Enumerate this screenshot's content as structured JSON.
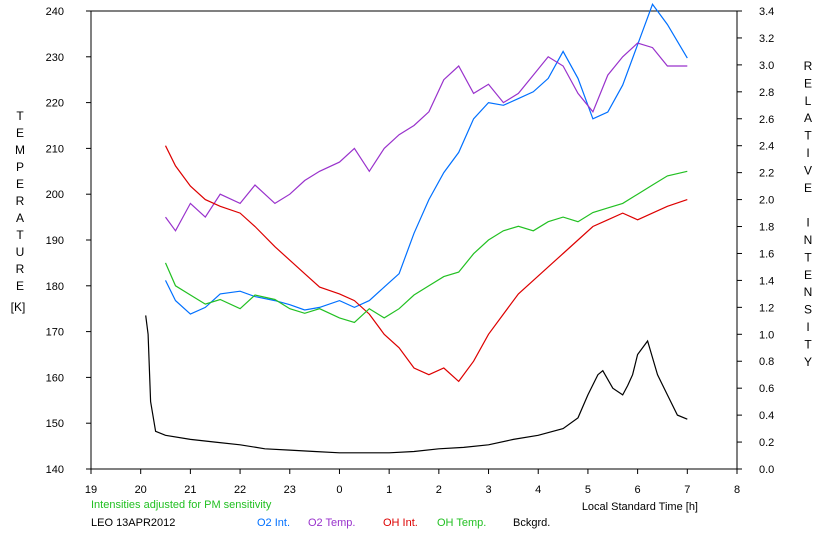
{
  "chart_data": {
    "type": "line",
    "station": "LEO 13APR2012",
    "note": "Intensities adjusted for PM sensitivity",
    "xlabel": "Local Standard Time [h]",
    "ylabel_left": "TEMPERATURE",
    "ylabel_left_unit": "[K]",
    "ylabel_right": "RELATIVE INTENSITY",
    "xlim": [
      19,
      32
    ],
    "x_ticks": [
      "19",
      "20",
      "21",
      "22",
      "23",
      "0",
      "1",
      "2",
      "3",
      "4",
      "5",
      "6",
      "7",
      "8"
    ],
    "ylim_left": [
      140,
      240
    ],
    "y_ticks_left": [
      "140",
      "150",
      "160",
      "170",
      "180",
      "190",
      "200",
      "210",
      "220",
      "230",
      "240"
    ],
    "ylim_right": [
      0.0,
      3.4
    ],
    "y_ticks_right": [
      "0.0",
      "0.2",
      "0.4",
      "0.6",
      "0.8",
      "1.0",
      "1.2",
      "1.4",
      "1.6",
      "1.8",
      "2.0",
      "2.2",
      "2.4",
      "2.6",
      "2.8",
      "3.0",
      "3.2",
      "3.4"
    ],
    "grid": false,
    "legend_placement": "bottom",
    "series": [
      {
        "name": "O2 Int.",
        "axis": "right",
        "color": "#0070ff",
        "x": [
          20.5,
          20.7,
          21.0,
          21.3,
          21.6,
          22.0,
          22.3,
          22.7,
          23.0,
          23.3,
          23.6,
          24.0,
          24.3,
          24.6,
          24.9,
          25.2,
          25.5,
          25.8,
          26.1,
          26.4,
          26.7,
          27.0,
          27.3,
          27.6,
          27.9,
          28.2,
          28.5,
          28.8,
          29.1,
          29.4,
          29.7,
          30.0,
          30.3,
          30.6,
          31.0
        ],
        "y": [
          1.4,
          1.25,
          1.15,
          1.2,
          1.3,
          1.32,
          1.28,
          1.25,
          1.22,
          1.18,
          1.2,
          1.25,
          1.2,
          1.25,
          1.35,
          1.45,
          1.75,
          2.0,
          2.2,
          2.35,
          2.6,
          2.72,
          2.7,
          2.75,
          2.8,
          2.9,
          3.1,
          2.9,
          2.6,
          2.65,
          2.85,
          3.15,
          3.45,
          3.3,
          3.05
        ]
      },
      {
        "name": "O2 Temp.",
        "axis": "left",
        "color": "#9932cc",
        "x": [
          20.5,
          20.7,
          21.0,
          21.3,
          21.6,
          22.0,
          22.3,
          22.7,
          23.0,
          23.3,
          23.6,
          24.0,
          24.3,
          24.6,
          24.9,
          25.2,
          25.5,
          25.8,
          26.1,
          26.4,
          26.7,
          27.0,
          27.3,
          27.6,
          27.9,
          28.2,
          28.5,
          28.8,
          29.1,
          29.4,
          29.7,
          30.0,
          30.3,
          30.6,
          31.0
        ],
        "y": [
          195,
          192,
          198,
          195,
          200,
          198,
          202,
          198,
          200,
          203,
          205,
          207,
          210,
          205,
          210,
          213,
          215,
          218,
          225,
          228,
          222,
          224,
          220,
          222,
          226,
          230,
          228,
          222,
          218,
          226,
          230,
          233,
          232,
          228,
          228
        ]
      },
      {
        "name": "OH Int.",
        "axis": "right",
        "color": "#dd0000",
        "x": [
          20.5,
          20.7,
          21.0,
          21.3,
          21.6,
          22.0,
          22.3,
          22.7,
          23.0,
          23.3,
          23.6,
          24.0,
          24.3,
          24.6,
          24.9,
          25.2,
          25.5,
          25.8,
          26.1,
          26.4,
          26.7,
          27.0,
          27.3,
          27.6,
          27.9,
          28.2,
          28.5,
          28.8,
          29.1,
          29.4,
          29.7,
          30.0,
          30.3,
          30.6,
          31.0
        ],
        "y": [
          2.4,
          2.25,
          2.1,
          2.0,
          1.95,
          1.9,
          1.8,
          1.65,
          1.55,
          1.45,
          1.35,
          1.3,
          1.25,
          1.15,
          1.0,
          0.9,
          0.75,
          0.7,
          0.75,
          0.65,
          0.8,
          1.0,
          1.15,
          1.3,
          1.4,
          1.5,
          1.6,
          1.7,
          1.8,
          1.85,
          1.9,
          1.85,
          1.9,
          1.95,
          2.0
        ]
      },
      {
        "name": "OH Temp.",
        "axis": "left",
        "color": "#22c022",
        "x": [
          20.5,
          20.7,
          21.0,
          21.3,
          21.6,
          22.0,
          22.3,
          22.7,
          23.0,
          23.3,
          23.6,
          24.0,
          24.3,
          24.6,
          24.9,
          25.2,
          25.5,
          25.8,
          26.1,
          26.4,
          26.7,
          27.0,
          27.3,
          27.6,
          27.9,
          28.2,
          28.5,
          28.8,
          29.1,
          29.4,
          29.7,
          30.0,
          30.3,
          30.6,
          31.0
        ],
        "y": [
          185,
          180,
          178,
          176,
          177,
          175,
          178,
          177,
          175,
          174,
          175,
          173,
          172,
          175,
          173,
          175,
          178,
          180,
          182,
          183,
          187,
          190,
          192,
          193,
          192,
          194,
          195,
          194,
          196,
          197,
          198,
          200,
          202,
          204,
          205
        ]
      },
      {
        "name": "Bckgrd.",
        "axis": "right",
        "color": "#000000",
        "x": [
          20.1,
          20.15,
          20.2,
          20.3,
          20.5,
          21.0,
          21.5,
          22.0,
          22.5,
          23.0,
          23.5,
          24.0,
          24.5,
          25.0,
          25.5,
          26.0,
          26.5,
          27.0,
          27.5,
          28.0,
          28.5,
          28.8,
          29.0,
          29.2,
          29.3,
          29.5,
          29.7,
          29.8,
          29.9,
          30.0,
          30.2,
          30.4,
          30.6,
          30.8,
          31.0
        ],
        "y": [
          1.14,
          1.0,
          0.5,
          0.28,
          0.25,
          0.22,
          0.2,
          0.18,
          0.15,
          0.14,
          0.13,
          0.12,
          0.12,
          0.12,
          0.13,
          0.15,
          0.16,
          0.18,
          0.22,
          0.25,
          0.3,
          0.38,
          0.55,
          0.7,
          0.73,
          0.6,
          0.55,
          0.62,
          0.7,
          0.85,
          0.95,
          0.7,
          0.55,
          0.4,
          0.37
        ]
      }
    ]
  }
}
